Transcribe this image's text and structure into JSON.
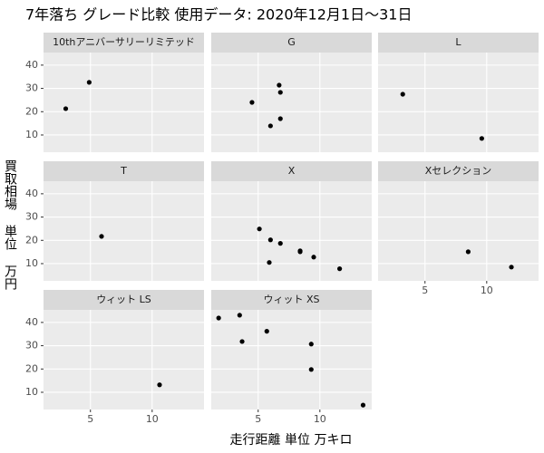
{
  "chart_data": {
    "type": "scatter",
    "title": "7年落ち グレード比較 使用データ: 2020年12月1日～31日",
    "x_label": "走行距離 単位 万キロ",
    "y_label": "買取相場 単位 万円",
    "xlim": [
      1.2,
      14.2
    ],
    "ylim": [
      2.6,
      45.4
    ],
    "xticks": [
      5,
      10
    ],
    "yticks": [
      10,
      20,
      30,
      40
    ],
    "grid": true,
    "color": "#000000",
    "panels": [
      {
        "name": "10thアニバーサリーリミテッド",
        "x": [
          3.0,
          4.9
        ],
        "y": [
          21.3,
          32.6
        ]
      },
      {
        "name": "G",
        "x": [
          4.5,
          6.7,
          6.8,
          6.8,
          6.0
        ],
        "y": [
          24.0,
          31.4,
          28.3,
          17.0,
          13.9
        ]
      },
      {
        "name": "L",
        "x": [
          3.2,
          9.6
        ],
        "y": [
          27.5,
          8.5
        ]
      },
      {
        "name": "T",
        "x": [
          5.9
        ],
        "y": [
          21.7
        ]
      },
      {
        "name": "X",
        "x": [
          5.1,
          6.0,
          6.8,
          8.4,
          8.4,
          9.5,
          5.9,
          11.6
        ],
        "y": [
          24.9,
          20.2,
          18.7,
          15.5,
          15.1,
          12.8,
          10.5,
          7.8
        ]
      },
      {
        "name": "Xセレクション",
        "x": [
          8.5,
          12.0
        ],
        "y": [
          15.1,
          8.5
        ]
      },
      {
        "name": "ウィット LS",
        "x": [
          10.6
        ],
        "y": [
          13.2
        ]
      },
      {
        "name": "ウィット XS",
        "x": [
          1.8,
          3.5,
          3.7,
          5.7,
          9.3,
          9.3,
          13.5
        ],
        "y": [
          41.9,
          43.1,
          31.8,
          36.2,
          30.7,
          19.8,
          4.5
        ]
      }
    ]
  }
}
